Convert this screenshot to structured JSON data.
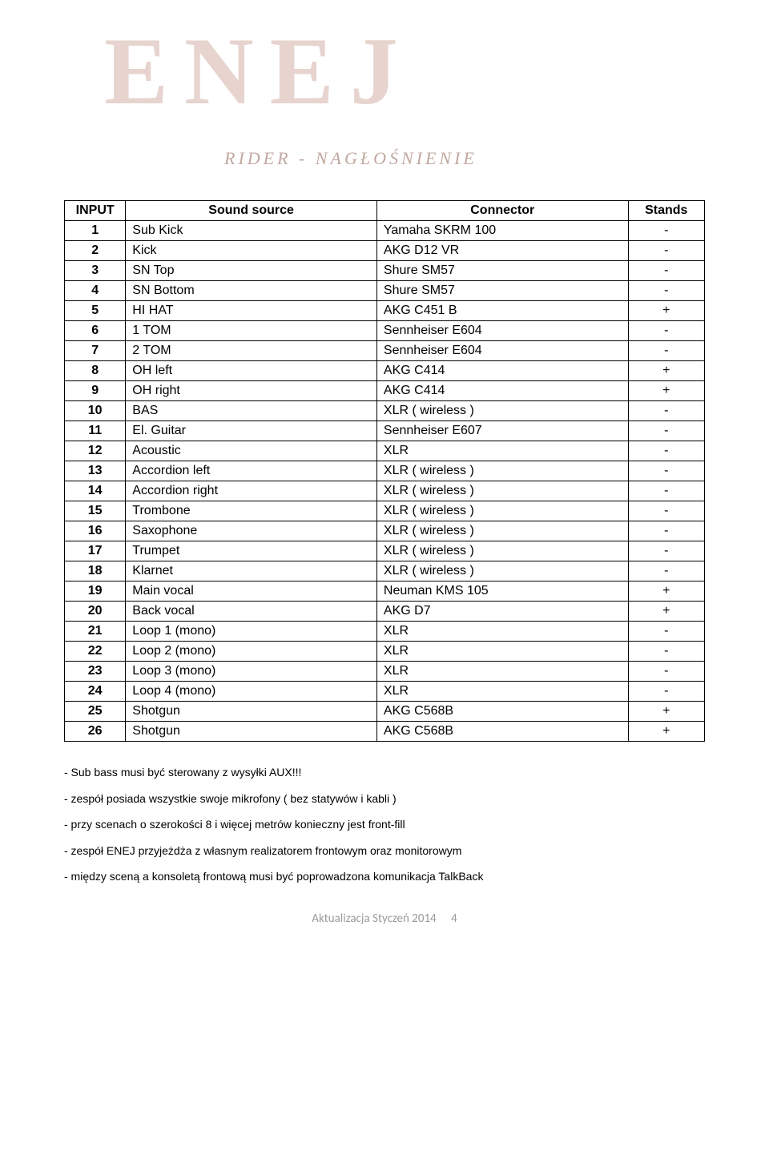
{
  "logo": {
    "main_text": "ENEJ",
    "sub_text": "RIDER - NAGŁOŚNIENIE"
  },
  "table": {
    "columns": [
      "INPUT",
      "Sound source",
      "Connector",
      "Stands"
    ],
    "rows": [
      [
        "1",
        "Sub Kick",
        "Yamaha SKRM 100",
        "-"
      ],
      [
        "2",
        "Kick",
        "AKG D12 VR",
        "-"
      ],
      [
        "3",
        "SN Top",
        "Shure SM57",
        "-"
      ],
      [
        "4",
        "SN Bottom",
        "Shure SM57",
        "-"
      ],
      [
        "5",
        "HI HAT",
        "AKG C451 B",
        "+"
      ],
      [
        "6",
        "1 TOM",
        "Sennheiser E604",
        "-"
      ],
      [
        "7",
        "2 TOM",
        "Sennheiser E604",
        "-"
      ],
      [
        "8",
        "OH left",
        "AKG C414",
        "+"
      ],
      [
        "9",
        "OH right",
        "AKG C414",
        "+"
      ],
      [
        "10",
        "BAS",
        "XLR ( wireless )",
        "-"
      ],
      [
        "11",
        "El. Guitar",
        "Sennheiser E607",
        "-"
      ],
      [
        "12",
        "Acoustic",
        "XLR",
        "-"
      ],
      [
        "13",
        "Accordion left",
        "XLR ( wireless )",
        "-"
      ],
      [
        "14",
        "Accordion right",
        "XLR ( wireless )",
        "-"
      ],
      [
        "15",
        "Trombone",
        "XLR ( wireless )",
        "-"
      ],
      [
        "16",
        "Saxophone",
        "XLR ( wireless )",
        "-"
      ],
      [
        "17",
        "Trumpet",
        "XLR ( wireless )",
        "-"
      ],
      [
        "18",
        "Klarnet",
        "XLR ( wireless )",
        "-"
      ],
      [
        "19",
        "Main vocal",
        "Neuman KMS 105",
        "+"
      ],
      [
        "20",
        "Back vocal",
        "AKG D7",
        "+"
      ],
      [
        "21",
        "Loop 1 (mono)",
        "XLR",
        "-"
      ],
      [
        "22",
        "Loop 2 (mono)",
        "XLR",
        "-"
      ],
      [
        "23",
        "Loop 3 (mono)",
        "XLR",
        "-"
      ],
      [
        "24",
        "Loop 4 (mono)",
        "XLR",
        "-"
      ],
      [
        "25",
        "Shotgun",
        "AKG C568B",
        "+"
      ],
      [
        "26",
        "Shotgun",
        "AKG C568B",
        "+"
      ]
    ]
  },
  "notes": [
    "- Sub bass musi być sterowany z wysyłki AUX!!!",
    "- zespół posiada wszystkie swoje mikrofony ( bez statywów i kabli )",
    "- przy scenach o szerokości 8 i więcej metrów konieczny jest front-fill",
    "- zespół ENEJ przyjeżdża z własnym realizatorem frontowym oraz monitorowym",
    "- między sceną a konsoletą frontową musi być poprowadzona komunikacja TalkBack"
  ],
  "footer": {
    "text": "Aktualizacja Styczeń 2014",
    "page_number": "4"
  }
}
